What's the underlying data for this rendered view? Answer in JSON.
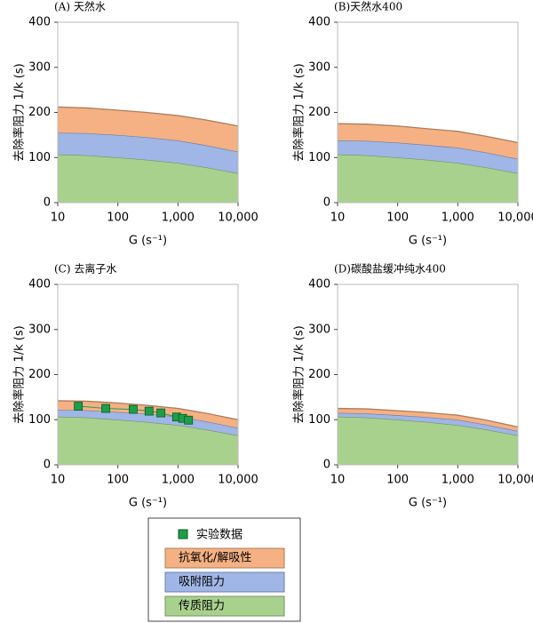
{
  "chart_data": [
    {
      "type": "area",
      "title": "(A) 天然水",
      "xlabel": "G (s⁻¹)",
      "ylabel": "去除率阻力 1/k (s)",
      "log_x": true,
      "stacked": true,
      "xlim": [
        10,
        10000
      ],
      "ylim": [
        0,
        400
      ],
      "xticks": [
        10,
        100,
        {
          "value": 1000,
          "label": "1,000"
        },
        {
          "value": 10000,
          "label": "10,000"
        }
      ],
      "yticks": [
        0,
        100,
        200,
        300,
        400
      ],
      "x": [
        10,
        30,
        100,
        300,
        1000,
        3000,
        10000
      ],
      "series": [
        {
          "color": "#a9d18e",
          "values": [
            107,
            105,
            100,
            95,
            88,
            78,
            65
          ]
        },
        {
          "color": "#9fb6e6",
          "values": [
            48,
            49,
            50,
            50,
            50,
            49,
            48
          ]
        },
        {
          "color": "#f5b183",
          "values": [
            57,
            56,
            55,
            55,
            55,
            56,
            57
          ]
        }
      ]
    },
    {
      "type": "area",
      "title": "(B)天然水400",
      "xlabel": "G (s⁻¹)",
      "ylabel": "去除率阻力 1/k (s)",
      "log_x": true,
      "stacked": true,
      "xlim": [
        10,
        10000
      ],
      "ylim": [
        0,
        400
      ],
      "xticks": [
        10,
        100,
        {
          "value": 1000,
          "label": "1,000"
        },
        {
          "value": 10000,
          "label": "10,000"
        }
      ],
      "yticks": [
        0,
        100,
        200,
        300,
        400
      ],
      "x": [
        10,
        30,
        100,
        300,
        1000,
        3000,
        10000
      ],
      "series": [
        {
          "color": "#a9d18e",
          "values": [
            107,
            105,
            100,
            95,
            88,
            78,
            65
          ]
        },
        {
          "color": "#9fb6e6",
          "values": [
            31,
            32,
            33,
            33,
            34,
            33,
            32
          ]
        },
        {
          "color": "#f5b183",
          "values": [
            37,
            37,
            37,
            36,
            36,
            36,
            36
          ]
        }
      ]
    },
    {
      "type": "area",
      "title": "(C) 去离子水",
      "xlabel": "G (s⁻¹)",
      "ylabel": "去除率阻力 1/k (s)",
      "log_x": true,
      "stacked": true,
      "xlim": [
        10,
        10000
      ],
      "ylim": [
        0,
        400
      ],
      "xticks": [
        10,
        100,
        {
          "value": 1000,
          "label": "1,000"
        },
        {
          "value": 10000,
          "label": "10,000"
        }
      ],
      "yticks": [
        0,
        100,
        200,
        300,
        400
      ],
      "x": [
        10,
        30,
        100,
        300,
        1000,
        3000,
        10000
      ],
      "series": [
        {
          "name": "传质阻力",
          "color": "#a9d18e",
          "values": [
            107,
            105,
            100,
            95,
            88,
            78,
            65
          ]
        },
        {
          "name": "吸附阻力",
          "color": "#9fb6e6",
          "values": [
            15,
            16,
            17,
            18,
            19,
            18,
            17
          ]
        },
        {
          "name": "抗氧化/解吸性",
          "color": "#f5b183",
          "values": [
            20,
            20,
            20,
            19,
            18,
            18,
            18
          ]
        },
        {
          "name": "实验数据",
          "type": "scatter",
          "color": "#1e9e4a",
          "x": [
            22,
            63,
            180,
            330,
            520,
            950,
            1200,
            1500
          ],
          "values": [
            130,
            125,
            123,
            119,
            115,
            106,
            103,
            99
          ]
        }
      ]
    },
    {
      "type": "area",
      "title": "(D)碳酸盐缓冲纯水400",
      "xlabel": "G (s⁻¹)",
      "ylabel": "去除率阻力 1/k (s)",
      "log_x": true,
      "stacked": true,
      "xlim": [
        10,
        10000
      ],
      "ylim": [
        0,
        400
      ],
      "xticks": [
        10,
        100,
        {
          "value": 1000,
          "label": "1,000"
        },
        {
          "value": 10000,
          "label": "10,000"
        }
      ],
      "yticks": [
        0,
        100,
        200,
        300,
        400
      ],
      "x": [
        10,
        30,
        100,
        300,
        1000,
        3000,
        10000
      ],
      "series": [
        {
          "color": "#a9d18e",
          "values": [
            107,
            105,
            100,
            95,
            88,
            78,
            65
          ]
        },
        {
          "color": "#9fb6e6",
          "values": [
            8,
            9,
            10,
            11,
            12,
            11,
            10
          ]
        },
        {
          "color": "#f5b183",
          "values": [
            10,
            10,
            10,
            10,
            10,
            10,
            9
          ]
        }
      ]
    }
  ]
}
